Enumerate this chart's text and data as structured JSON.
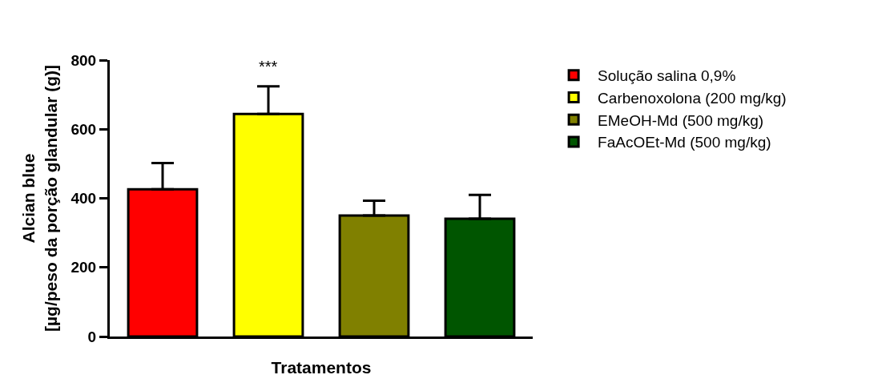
{
  "chart_data": {
    "type": "bar",
    "xlabel": "Tratamentos",
    "ylabel": "Alcian blue\n[µg/peso da porção glandular (g)]",
    "categories": [
      null,
      null,
      null,
      null
    ],
    "series": [
      {
        "name": "Solução salina 0,9%",
        "color": "#ff0000",
        "values": [
          426,
          null,
          null,
          null
        ],
        "errors": [
          [
            426,
            502
          ],
          null,
          null,
          null
        ]
      },
      {
        "name": "Carbenoxolona (200 mg/kg)",
        "color": "#ffff00",
        "values": [
          null,
          644,
          null,
          null
        ],
        "errors": [
          null,
          [
            644,
            724
          ],
          null,
          null
        ]
      },
      {
        "name": "EMeOH-Md (500 mg/kg)",
        "color": "#808000",
        "values": [
          null,
          null,
          350,
          null
        ],
        "errors": [
          null,
          null,
          [
            350,
            393
          ],
          null
        ]
      },
      {
        "name": "FaAcOEt-Md (500 mg/kg)",
        "color": "#005500",
        "values": [
          null,
          null,
          null,
          341
        ],
        "errors": [
          null,
          null,
          null,
          [
            341,
            410
          ]
        ]
      }
    ],
    "annotations": [
      {
        "text": "***",
        "y": 724
      }
    ],
    "ylim": [
      0,
      800
    ],
    "yticks": [
      0,
      200,
      400,
      600,
      800
    ],
    "tick_labels": "y",
    "grid": false,
    "legend": "right"
  }
}
